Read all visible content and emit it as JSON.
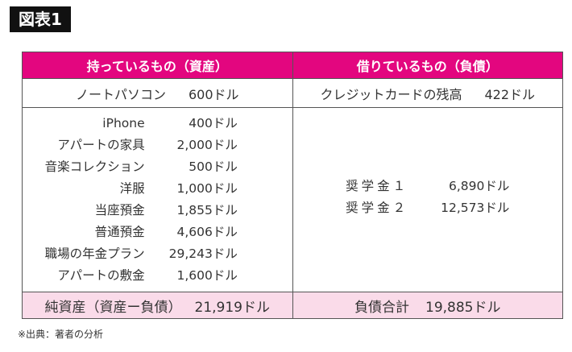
{
  "figure_label": "図表1",
  "headers": {
    "assets": "持っているもの（資産）",
    "liabilities": "借りているもの（負債）"
  },
  "row2": {
    "asset_label": "ノートパソコン",
    "asset_value": "600ドル",
    "liability_label": "クレジットカードの残高",
    "liability_value": "422ドル"
  },
  "assets": [
    {
      "label": "iPhone",
      "value": "400ドル"
    },
    {
      "label": "アパートの家具",
      "value": "2,000ドル"
    },
    {
      "label": "音楽コレクション",
      "value": "500ドル"
    },
    {
      "label": "洋服",
      "value": "1,000ドル"
    },
    {
      "label": "当座預金",
      "value": "1,855ドル"
    },
    {
      "label": "普通預金",
      "value": "4,606ドル"
    },
    {
      "label": "職場の年金プラン",
      "value": "29,243ドル"
    },
    {
      "label": "アパートの敷金",
      "value": "1,600ドル"
    }
  ],
  "liabilities": [
    {
      "label": "奨学金１",
      "value": "6,890ドル"
    },
    {
      "label": "奨学金２",
      "value": "12,573ドル"
    }
  ],
  "footer": {
    "net_label": "純資産（資産ー負債）",
    "net_value": "21,919ドル",
    "total_label": "負債合計",
    "total_value": "19,885ドル"
  },
  "source": "※出典：著者の分析",
  "colors": {
    "header": "#e3067f",
    "footer": "#fadbe9"
  }
}
